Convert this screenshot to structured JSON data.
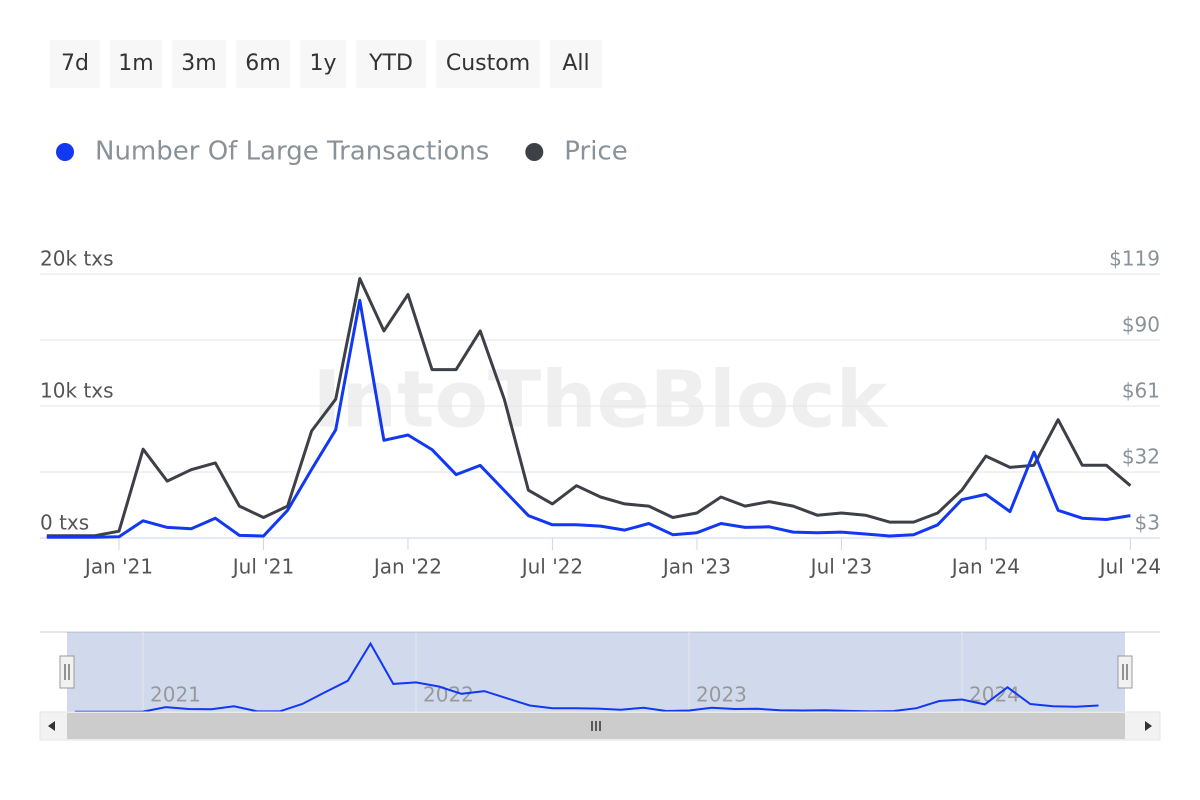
{
  "range_buttons": [
    "7d",
    "1m",
    "3m",
    "6m",
    "1y",
    "YTD",
    "Custom",
    "All"
  ],
  "watermark": "IntoTheBlock",
  "chart_data": {
    "type": "line",
    "x": [
      "2020-10",
      "2020-11",
      "2020-12",
      "2021-01",
      "2021-02",
      "2021-03",
      "2021-04",
      "2021-05",
      "2021-06",
      "2021-07",
      "2021-08",
      "2021-09",
      "2021-10",
      "2021-11",
      "2021-12",
      "2022-01",
      "2022-02",
      "2022-03",
      "2022-04",
      "2022-05",
      "2022-06",
      "2022-07",
      "2022-08",
      "2022-09",
      "2022-10",
      "2022-11",
      "2022-12",
      "2023-01",
      "2023-02",
      "2023-03",
      "2023-04",
      "2023-05",
      "2023-06",
      "2023-07",
      "2023-08",
      "2023-09",
      "2023-10",
      "2023-11",
      "2023-12",
      "2024-01",
      "2024-02",
      "2024-03",
      "2024-04",
      "2024-05",
      "2024-06",
      "2024-07"
    ],
    "series": [
      {
        "name": "Number Of Large Transactions",
        "color": "#1238f2",
        "axis": "y",
        "values": [
          50,
          50,
          60,
          100,
          1300,
          800,
          700,
          1500,
          200,
          150,
          2100,
          5200,
          8200,
          18000,
          7400,
          7800,
          6700,
          4800,
          5500,
          3600,
          1700,
          1000,
          1000,
          900,
          600,
          1100,
          250,
          400,
          1100,
          800,
          850,
          450,
          400,
          450,
          300,
          150,
          250,
          1000,
          2900,
          3300,
          2000,
          6500,
          2100,
          1500,
          1400,
          1700
        ]
      },
      {
        "name": "Price",
        "color": "#3d4147",
        "axis": "y2",
        "values": [
          4,
          4,
          4,
          6,
          42,
          28,
          33,
          36,
          17,
          12,
          17,
          50,
          64,
          117,
          94,
          110,
          77,
          77,
          94,
          64,
          24,
          18,
          26,
          21,
          18,
          17,
          12,
          14,
          21,
          17,
          19,
          17,
          13,
          14,
          13,
          10,
          10,
          14,
          24,
          39,
          34,
          35,
          55,
          35,
          35,
          26
        ]
      }
    ],
    "ylim": [
      0,
      20000
    ],
    "yticks": [
      {
        "value": 0,
        "label": "0 txs"
      },
      {
        "value": 10000,
        "label": "10k txs"
      },
      {
        "value": 20000,
        "label": "20k txs"
      }
    ],
    "y2lim": [
      3,
      119
    ],
    "y2ticks": [
      {
        "value": 3,
        "label": "$3"
      },
      {
        "value": 32,
        "label": "$32"
      },
      {
        "value": 61,
        "label": "$61"
      },
      {
        "value": 90,
        "label": "$90"
      },
      {
        "value": 119,
        "label": "$119"
      }
    ],
    "xticks": [
      {
        "value": "2021-01",
        "label": "Jan '21"
      },
      {
        "value": "2021-07",
        "label": "Jul '21"
      },
      {
        "value": "2022-01",
        "label": "Jan '22"
      },
      {
        "value": "2022-07",
        "label": "Jul '22"
      },
      {
        "value": "2023-01",
        "label": "Jan '23"
      },
      {
        "value": "2023-07",
        "label": "Jul '23"
      },
      {
        "value": "2024-01",
        "label": "Jan '24"
      },
      {
        "value": "2024-07",
        "label": "Jul '24"
      }
    ],
    "grid": true,
    "legend": "top-left",
    "navigator": {
      "labels": [
        {
          "value": "2021-01",
          "label": "2021"
        },
        {
          "value": "2022-01",
          "label": "2022"
        },
        {
          "value": "2023-01",
          "label": "2023"
        },
        {
          "value": "2024-01",
          "label": "2024"
        }
      ]
    }
  }
}
